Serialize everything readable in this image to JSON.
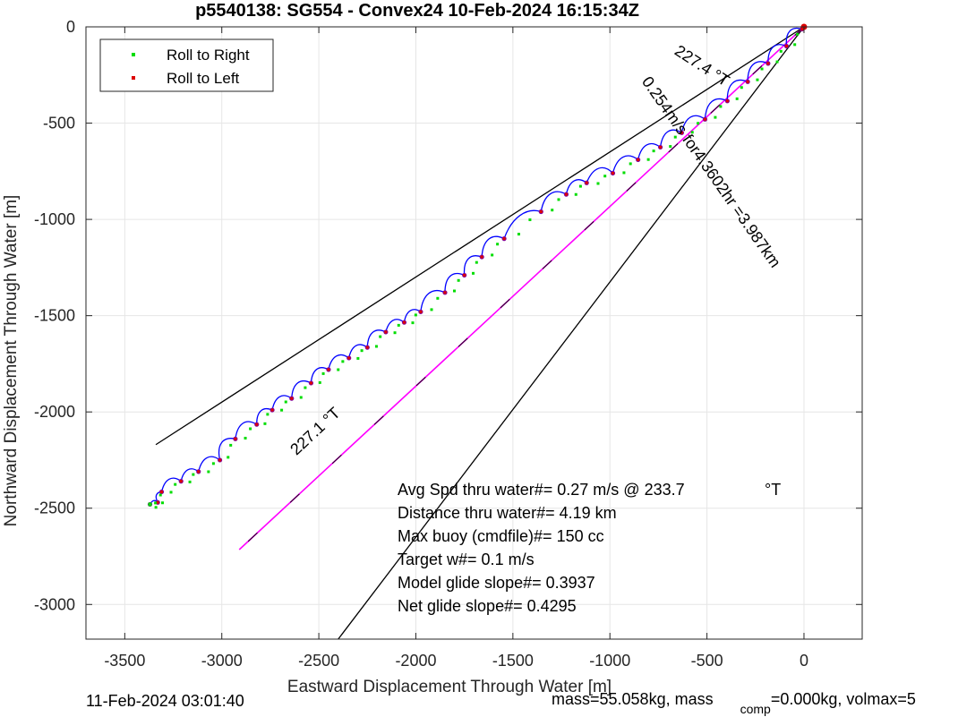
{
  "chart_data": {
    "type": "scatter",
    "title": "p5540138: SG554 - Convex24 10-Feb-2024 16:15:34Z",
    "xlabel": "Eastward Displacement Through Water [m]",
    "ylabel": "Northward Displacement Through Water [m]",
    "xlim": [
      -3700,
      300
    ],
    "ylim": [
      -3180,
      0
    ],
    "xticks": [
      -3500,
      -3000,
      -2500,
      -2000,
      -1500,
      -1000,
      -500,
      0
    ],
    "yticks": [
      0,
      -500,
      -1000,
      -1500,
      -2000,
      -2500,
      -3000
    ],
    "grid": true,
    "legend_position": "top-left",
    "legend": [
      {
        "label": "Roll to Right",
        "color": "#00dd00"
      },
      {
        "label": "Roll to Left",
        "color": "#dd0000"
      }
    ],
    "colors": {
      "track": "#0000ff",
      "model_line": "#ff00ff",
      "bounds": "#000000",
      "dive_marker": "#8000a0"
    },
    "track_dives": [
      [
        -10,
        -12
      ],
      [
        -90,
        -100
      ],
      [
        -185,
        -190
      ],
      [
        -290,
        -285
      ],
      [
        -395,
        -385
      ],
      [
        -510,
        -480
      ],
      [
        -630,
        -550
      ],
      [
        -740,
        -625
      ],
      [
        -855,
        -690
      ],
      [
        -985,
        -760
      ],
      [
        -1120,
        -810
      ],
      [
        -1225,
        -870
      ],
      [
        -1355,
        -960
      ],
      [
        -1545,
        -1100
      ],
      [
        -1660,
        -1195
      ],
      [
        -1750,
        -1290
      ],
      [
        -1850,
        -1380
      ],
      [
        -1975,
        -1480
      ],
      [
        -2060,
        -1535
      ],
      [
        -2155,
        -1585
      ],
      [
        -2250,
        -1665
      ],
      [
        -2345,
        -1720
      ],
      [
        -2450,
        -1780
      ],
      [
        -2540,
        -1850
      ],
      [
        -2640,
        -1930
      ],
      [
        -2740,
        -1990
      ],
      [
        -2820,
        -2065
      ],
      [
        -2930,
        -2140
      ],
      [
        -3010,
        -2250
      ],
      [
        -3120,
        -2310
      ],
      [
        -3210,
        -2360
      ],
      [
        -3310,
        -2415
      ],
      [
        -3330,
        -2470
      ],
      [
        -3370,
        -2480
      ]
    ],
    "model_line": [
      [
        0,
        0
      ],
      [
        -2910,
        -2715
      ]
    ],
    "bound_lines": [
      [
        [
          0,
          0
        ],
        [
          -3340,
          -2170
        ]
      ],
      [
        [
          0,
          0
        ],
        [
          -2400,
          -3180
        ]
      ]
    ],
    "annotations": [
      {
        "text": "227.4 °T",
        "x": -540,
        "y": -225,
        "angle": 33
      },
      {
        "text": "0.254m/s for4.3602hr =3.987km",
        "x": -500,
        "y": -770,
        "angle": 55
      },
      {
        "text": "227.1 °T",
        "x": -2500,
        "y": -2120,
        "angle": -43
      }
    ],
    "stats": [
      "Avg Spd thru water#=  0.27 m/s @ 233.7",
      "Distance thru water#=  4.19 km",
      "Max buoy (cmdfile)#= 150 cc",
      "Target w#= 0.1 m/s",
      "Model glide slope#= 0.3937",
      "Net glide slope#= 0.4295"
    ],
    "stats_unit": "°T"
  },
  "footer": {
    "timestamp": "11-Feb-2024 03:01:40",
    "mass_prefix": "mass=55.058kg, mass",
    "mass_sub": "comp",
    "mass_suffix": "=0.000kg, volmax=5"
  }
}
